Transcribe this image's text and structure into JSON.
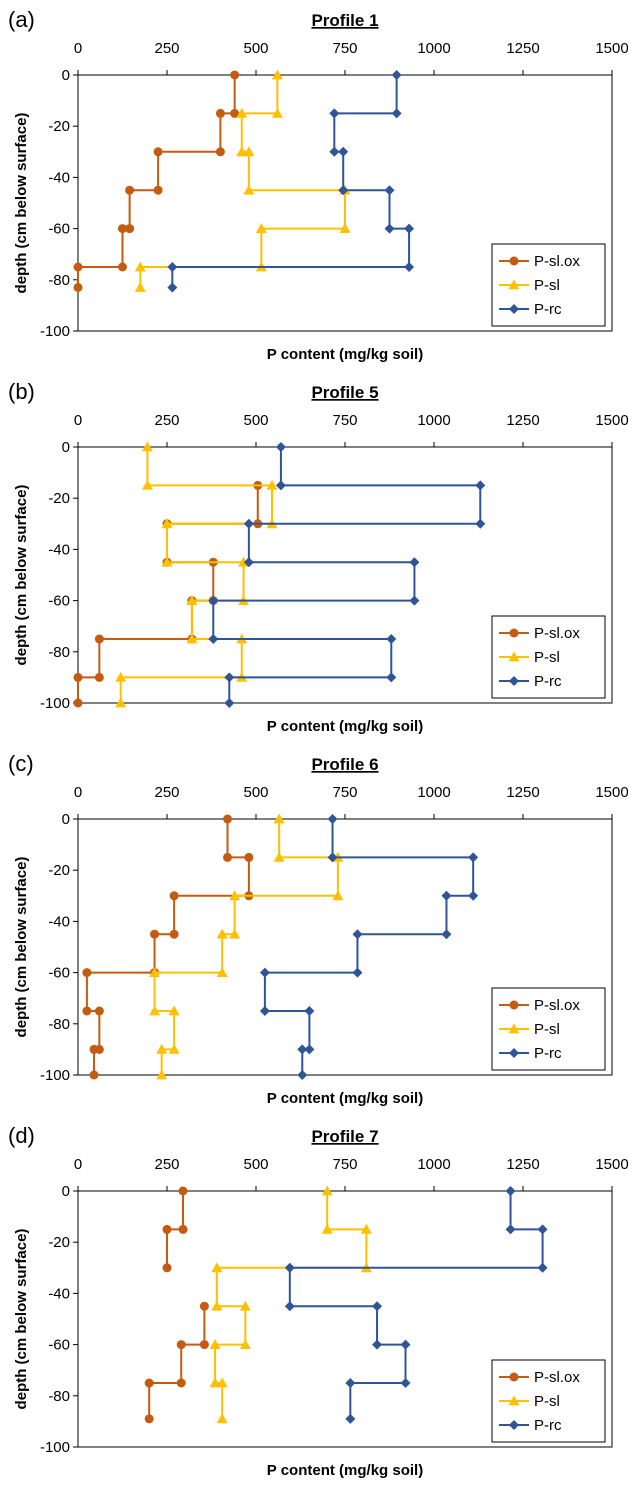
{
  "chart_data": [
    {
      "type": "line",
      "panel_label": "(a)",
      "title": "Profile 1",
      "xlabel": "P content (mg/kg soil)",
      "ylabel": "depth (cm below surface)",
      "xlim": [
        0,
        1500
      ],
      "ylim": [
        -100,
        0
      ],
      "x_ticks": [
        "0",
        "250",
        "500",
        "750",
        "1000",
        "1250",
        "1500"
      ],
      "y_ticks": [
        "0",
        "-20",
        "-40",
        "-60",
        "-80",
        "-100"
      ],
      "grid": false,
      "legend_position": "bottom-right",
      "series": [
        {
          "name": "P-sl.ox",
          "color": "#C55A11",
          "marker": "circle",
          "points": [
            [
              440,
              0
            ],
            [
              440,
              -15
            ],
            [
              400,
              -15
            ],
            [
              400,
              -30
            ],
            [
              225,
              -30
            ],
            [
              225,
              -45
            ],
            [
              145,
              -45
            ],
            [
              145,
              -60
            ],
            [
              125,
              -60
            ],
            [
              125,
              -75
            ],
            [
              0,
              -75
            ],
            [
              0,
              -83
            ]
          ]
        },
        {
          "name": "P-sl",
          "color": "#FFC000",
          "marker": "triangle",
          "points": [
            [
              560,
              0
            ],
            [
              560,
              -15
            ],
            [
              460,
              -15
            ],
            [
              460,
              -30
            ],
            [
              480,
              -30
            ],
            [
              480,
              -45
            ],
            [
              750,
              -45
            ],
            [
              750,
              -60
            ],
            [
              515,
              -60
            ],
            [
              515,
              -75
            ],
            [
              175,
              -75
            ],
            [
              175,
              -83
            ]
          ]
        },
        {
          "name": "P-rc",
          "color": "#2F5597",
          "marker": "diamond",
          "points": [
            [
              895,
              0
            ],
            [
              895,
              -15
            ],
            [
              720,
              -15
            ],
            [
              720,
              -30
            ],
            [
              745,
              -30
            ],
            [
              745,
              -45
            ],
            [
              875,
              -45
            ],
            [
              875,
              -60
            ],
            [
              930,
              -60
            ],
            [
              930,
              -75
            ],
            [
              265,
              -75
            ],
            [
              265,
              -83
            ]
          ]
        }
      ]
    },
    {
      "type": "line",
      "panel_label": "(b)",
      "title": "Profile 5",
      "xlabel": "P content (mg/kg soil)",
      "ylabel": "depth (cm below surface)",
      "xlim": [
        0,
        1500
      ],
      "ylim": [
        -100,
        0
      ],
      "x_ticks": [
        "0",
        "250",
        "500",
        "750",
        "1000",
        "1250",
        "1500"
      ],
      "y_ticks": [
        "0",
        "-20",
        "-40",
        "-60",
        "-80",
        "-100"
      ],
      "grid": false,
      "legend_position": "bottom-right",
      "series": [
        {
          "name": "P-sl.ox",
          "color": "#C55A11",
          "marker": "circle",
          "points": [
            [
              505,
              -15
            ],
            [
              505,
              -30
            ],
            [
              250,
              -30
            ],
            [
              250,
              -45
            ],
            [
              380,
              -45
            ],
            [
              380,
              -60
            ],
            [
              320,
              -60
            ],
            [
              320,
              -75
            ],
            [
              60,
              -75
            ],
            [
              60,
              -90
            ],
            [
              0,
              -90
            ],
            [
              0,
              -100
            ]
          ]
        },
        {
          "name": "P-sl",
          "color": "#FFC000",
          "marker": "triangle",
          "points": [
            [
              195,
              0
            ],
            [
              195,
              -15
            ],
            [
              545,
              -15
            ],
            [
              545,
              -30
            ],
            [
              250,
              -30
            ],
            [
              250,
              -45
            ],
            [
              465,
              -45
            ],
            [
              465,
              -60
            ],
            [
              320,
              -60
            ],
            [
              320,
              -75
            ],
            [
              460,
              -75
            ],
            [
              460,
              -90
            ],
            [
              120,
              -90
            ],
            [
              120,
              -100
            ]
          ]
        },
        {
          "name": "P-rc",
          "color": "#2F5597",
          "marker": "diamond",
          "points": [
            [
              570,
              0
            ],
            [
              570,
              -15
            ],
            [
              1130,
              -15
            ],
            [
              1130,
              -30
            ],
            [
              480,
              -30
            ],
            [
              480,
              -45
            ],
            [
              945,
              -45
            ],
            [
              945,
              -60
            ],
            [
              380,
              -60
            ],
            [
              380,
              -75
            ],
            [
              880,
              -75
            ],
            [
              880,
              -90
            ],
            [
              425,
              -90
            ],
            [
              425,
              -100
            ]
          ]
        }
      ]
    },
    {
      "type": "line",
      "panel_label": "(c)",
      "title": "Profile 6",
      "xlabel": "P content (mg/kg soil)",
      "ylabel": "depth (cm below surface)",
      "xlim": [
        0,
        1500
      ],
      "ylim": [
        -100,
        0
      ],
      "x_ticks": [
        "0",
        "250",
        "500",
        "750",
        "1000",
        "1250",
        "1500"
      ],
      "y_ticks": [
        "0",
        "-20",
        "-40",
        "-60",
        "-80",
        "-100"
      ],
      "grid": false,
      "legend_position": "bottom-right",
      "series": [
        {
          "name": "P-sl.ox",
          "color": "#C55A11",
          "marker": "circle",
          "points": [
            [
              420,
              0
            ],
            [
              420,
              -15
            ],
            [
              480,
              -15
            ],
            [
              480,
              -30
            ],
            [
              270,
              -30
            ],
            [
              270,
              -45
            ],
            [
              215,
              -45
            ],
            [
              215,
              -60
            ],
            [
              25,
              -60
            ],
            [
              25,
              -75
            ],
            [
              60,
              -75
            ],
            [
              60,
              -90
            ],
            [
              45,
              -90
            ],
            [
              45,
              -100
            ]
          ]
        },
        {
          "name": "P-sl",
          "color": "#FFC000",
          "marker": "triangle",
          "points": [
            [
              565,
              0
            ],
            [
              565,
              -15
            ],
            [
              730,
              -15
            ],
            [
              730,
              -30
            ],
            [
              440,
              -30
            ],
            [
              440,
              -45
            ],
            [
              405,
              -45
            ],
            [
              405,
              -60
            ],
            [
              215,
              -60
            ],
            [
              215,
              -75
            ],
            [
              270,
              -75
            ],
            [
              270,
              -90
            ],
            [
              235,
              -90
            ],
            [
              235,
              -100
            ]
          ]
        },
        {
          "name": "P-rc",
          "color": "#2F5597",
          "marker": "diamond",
          "points": [
            [
              715,
              0
            ],
            [
              715,
              -15
            ],
            [
              1110,
              -15
            ],
            [
              1110,
              -30
            ],
            [
              1035,
              -30
            ],
            [
              1035,
              -45
            ],
            [
              785,
              -45
            ],
            [
              785,
              -60
            ],
            [
              525,
              -60
            ],
            [
              525,
              -75
            ],
            [
              650,
              -75
            ],
            [
              650,
              -90
            ],
            [
              630,
              -90
            ],
            [
              630,
              -100
            ]
          ]
        }
      ]
    },
    {
      "type": "line",
      "panel_label": "(d)",
      "title": "Profile 7",
      "xlabel": "P content (mg/kg soil)",
      "ylabel": "depth (cm below surface)",
      "xlim": [
        0,
        1500
      ],
      "ylim": [
        -100,
        0
      ],
      "x_ticks": [
        "0",
        "250",
        "500",
        "750",
        "1000",
        "1250",
        "1500"
      ],
      "y_ticks": [
        "0",
        "-20",
        "-40",
        "-60",
        "-80",
        "-100"
      ],
      "grid": false,
      "legend_position": "bottom-right",
      "series": [
        {
          "name": "P-sl.ox",
          "color": "#C55A11",
          "marker": "circle",
          "points": [
            [
              295,
              0
            ],
            [
              295,
              -15
            ],
            [
              250,
              -15
            ],
            [
              250,
              -30
            ]
          ],
          "points_2": [
            [
              355,
              -45
            ],
            [
              355,
              -60
            ],
            [
              290,
              -60
            ],
            [
              290,
              -75
            ],
            [
              200,
              -75
            ],
            [
              200,
              -89
            ]
          ]
        },
        {
          "name": "P-sl",
          "color": "#FFC000",
          "marker": "triangle",
          "points": [
            [
              700,
              0
            ],
            [
              700,
              -15
            ],
            [
              810,
              -15
            ],
            [
              810,
              -30
            ],
            [
              390,
              -30
            ],
            [
              390,
              -45
            ],
            [
              470,
              -45
            ],
            [
              470,
              -60
            ],
            [
              385,
              -60
            ],
            [
              385,
              -75
            ],
            [
              405,
              -75
            ],
            [
              405,
              -89
            ]
          ]
        },
        {
          "name": "P-rc",
          "color": "#2F5597",
          "marker": "diamond",
          "points": [
            [
              1215,
              0
            ],
            [
              1215,
              -15
            ],
            [
              1305,
              -15
            ],
            [
              1305,
              -30
            ],
            [
              595,
              -30
            ],
            [
              595,
              -45
            ],
            [
              840,
              -45
            ],
            [
              840,
              -60
            ],
            [
              920,
              -60
            ],
            [
              920,
              -75
            ],
            [
              765,
              -75
            ],
            [
              765,
              -89
            ]
          ]
        }
      ]
    }
  ]
}
